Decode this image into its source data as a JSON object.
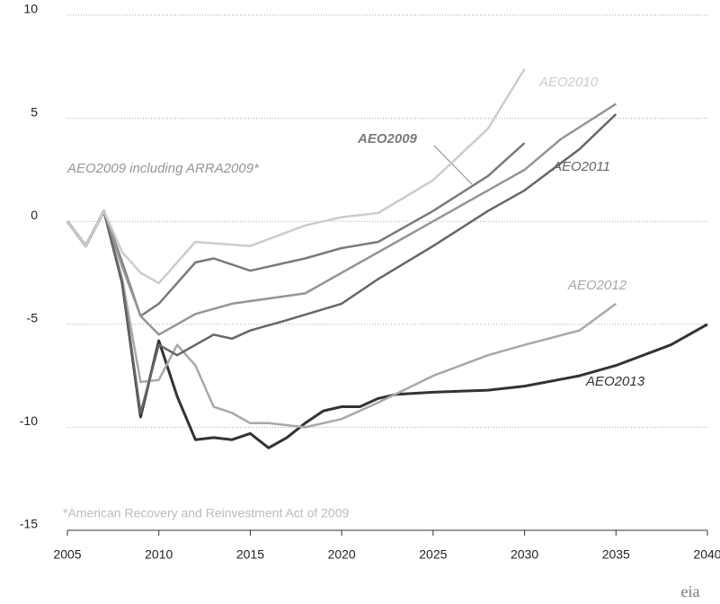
{
  "chart_data": {
    "type": "line",
    "footnote": "*American Recovery and Reinvestment Act of 2009",
    "logo": "eia",
    "xlim": [
      2005,
      2040
    ],
    "xticks": [
      2005,
      2010,
      2015,
      2020,
      2025,
      2030,
      2035,
      2040
    ],
    "ylim": [
      -15,
      10
    ],
    "yticks": [
      -15,
      -10,
      -5,
      0,
      5,
      10
    ],
    "grid": true,
    "series": [
      {
        "name": "AEO2013",
        "color": "#333333",
        "x": [
          2005,
          2006,
          2007,
          2008,
          2009,
          2010,
          2011,
          2012,
          2013,
          2014,
          2015,
          2016,
          2017,
          2018,
          2019,
          2020,
          2021,
          2022,
          2023,
          2025,
          2028,
          2030,
          2033,
          2035,
          2038,
          2040
        ],
        "values": [
          0,
          -1.2,
          0.5,
          -3,
          -9.5,
          -5.8,
          -8.5,
          -10.6,
          -10.5,
          -10.6,
          -10.3,
          -11,
          -10.5,
          -9.8,
          -9.2,
          -9.0,
          -9.0,
          -8.6,
          -8.4,
          -8.3,
          -8.2,
          -8.0,
          -7.5,
          -7.0,
          -6.0,
          -5.0
        ]
      },
      {
        "name": "AEO2012",
        "color": "#a8a8a8",
        "x": [
          2005,
          2006,
          2007,
          2008,
          2009,
          2010,
          2011,
          2012,
          2013,
          2014,
          2015,
          2016,
          2018,
          2020,
          2022,
          2025,
          2028,
          2030,
          2033,
          2035
        ],
        "values": [
          0,
          -1.2,
          0.5,
          -2.8,
          -7.8,
          -7.7,
          -6.0,
          -7.0,
          -9.0,
          -9.3,
          -9.8,
          -9.8,
          -10.0,
          -9.6,
          -8.8,
          -7.5,
          -6.5,
          -6.0,
          -5.3,
          -4.0
        ]
      },
      {
        "name": "AEO2011",
        "color": "#666666",
        "x": [
          2005,
          2006,
          2007,
          2008,
          2009,
          2010,
          2011,
          2012,
          2013,
          2014,
          2015,
          2017,
          2020,
          2022,
          2025,
          2028,
          2030,
          2033,
          2035
        ],
        "values": [
          0,
          -1.2,
          0.5,
          -3,
          -9.3,
          -6.0,
          -6.5,
          -6.0,
          -5.5,
          -5.7,
          -5.3,
          -4.8,
          -4.0,
          -2.8,
          -1.2,
          0.5,
          1.5,
          3.5,
          5.2
        ]
      },
      {
        "name": "AEO2009",
        "color": "#7a7a7a",
        "x": [
          2005,
          2006,
          2007,
          2008,
          2009,
          2010,
          2012,
          2013,
          2015,
          2018,
          2020,
          2022,
          2025,
          2028,
          2030
        ],
        "values": [
          0,
          -1.2,
          0.5,
          -2.0,
          -4.6,
          -4.0,
          -2.0,
          -1.8,
          -2.4,
          -1.8,
          -1.3,
          -1.0,
          0.5,
          2.2,
          3.8
        ]
      },
      {
        "name": "AEO2009 including ARRA2009*",
        "color": "#959595",
        "x": [
          2005,
          2006,
          2007,
          2008,
          2009,
          2010,
          2012,
          2014,
          2018,
          2020,
          2022,
          2025,
          2028,
          2030,
          2032,
          2035
        ],
        "values": [
          0,
          -1.2,
          0.5,
          -2.2,
          -4.6,
          -5.5,
          -4.5,
          -4.0,
          -3.5,
          -2.5,
          -1.5,
          0.0,
          1.5,
          2.5,
          4.0,
          5.7
        ]
      },
      {
        "name": "AEO2010",
        "color": "#cccccc",
        "x": [
          2005,
          2006,
          2007,
          2008,
          2009,
          2010,
          2012,
          2015,
          2018,
          2020,
          2022,
          2025,
          2028,
          2030
        ],
        "values": [
          0,
          -1.2,
          0.5,
          -1.5,
          -2.5,
          -3.0,
          -1.0,
          -1.2,
          -0.2,
          0.2,
          0.4,
          2.0,
          4.5,
          7.4
        ]
      }
    ]
  }
}
